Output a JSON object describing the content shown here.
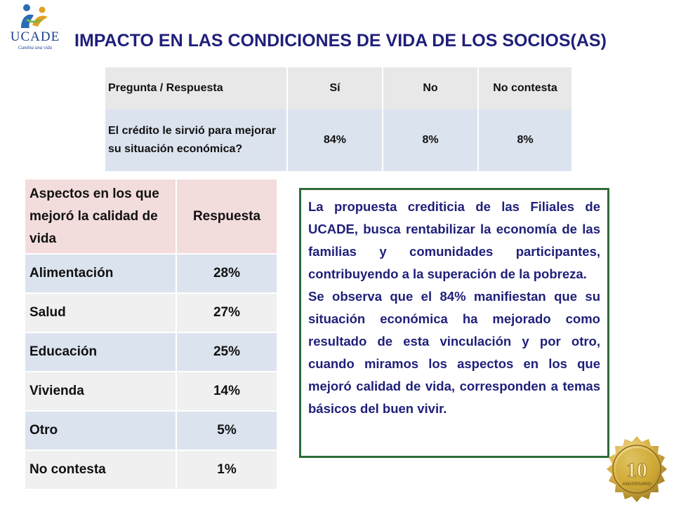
{
  "logo": {
    "text": "UCADE",
    "tagline": "Cambia una vida"
  },
  "title": "IMPACTO EN LAS CONDICIONES DE VIDA DE LOS SOCIOS(AS)",
  "table1": {
    "headers": [
      "Pregunta / Respuesta",
      "Sí",
      "No",
      "No contesta"
    ],
    "rows": [
      {
        "question": "El crédito le sirvió para mejorar su situación económica?",
        "si": "84%",
        "no": "8%",
        "no_contesta": "8%"
      }
    ]
  },
  "table2": {
    "headers": [
      "Aspectos en los que mejoró la calidad de vida",
      "Respuesta"
    ],
    "rows": [
      {
        "aspect": "Alimentación",
        "value": "28%"
      },
      {
        "aspect": "Salud",
        "value": "27%"
      },
      {
        "aspect": "Educación",
        "value": "25%"
      },
      {
        "aspect": "Vivienda",
        "value": "14%"
      },
      {
        "aspect": "Otro",
        "value": "5%"
      },
      {
        "aspect": "No contesta",
        "value": "1%"
      }
    ]
  },
  "textbox": {
    "p1": "La propuesta crediticia de las Filiales de UCADE, busca rentabilizar la economía de las familias y comunidades participantes, contribuyendo a la superación de la pobreza.",
    "p2": "Se observa que el 84% manifiestan que su situación económica ha mejorado como resultado de esta vinculación y por otro, cuando miramos los aspectos en los que mejoró calidad de vida, corresponden a temas básicos del buen vivir."
  },
  "seal": {
    "number": "10",
    "text": "ANIVERSARIO"
  },
  "colors": {
    "title": "#1f1f7a",
    "box_border": "#2e6b3a",
    "row_blue": "#dbe3ef",
    "header_pink": "#f3dcdc",
    "gold": "#c9a227"
  }
}
